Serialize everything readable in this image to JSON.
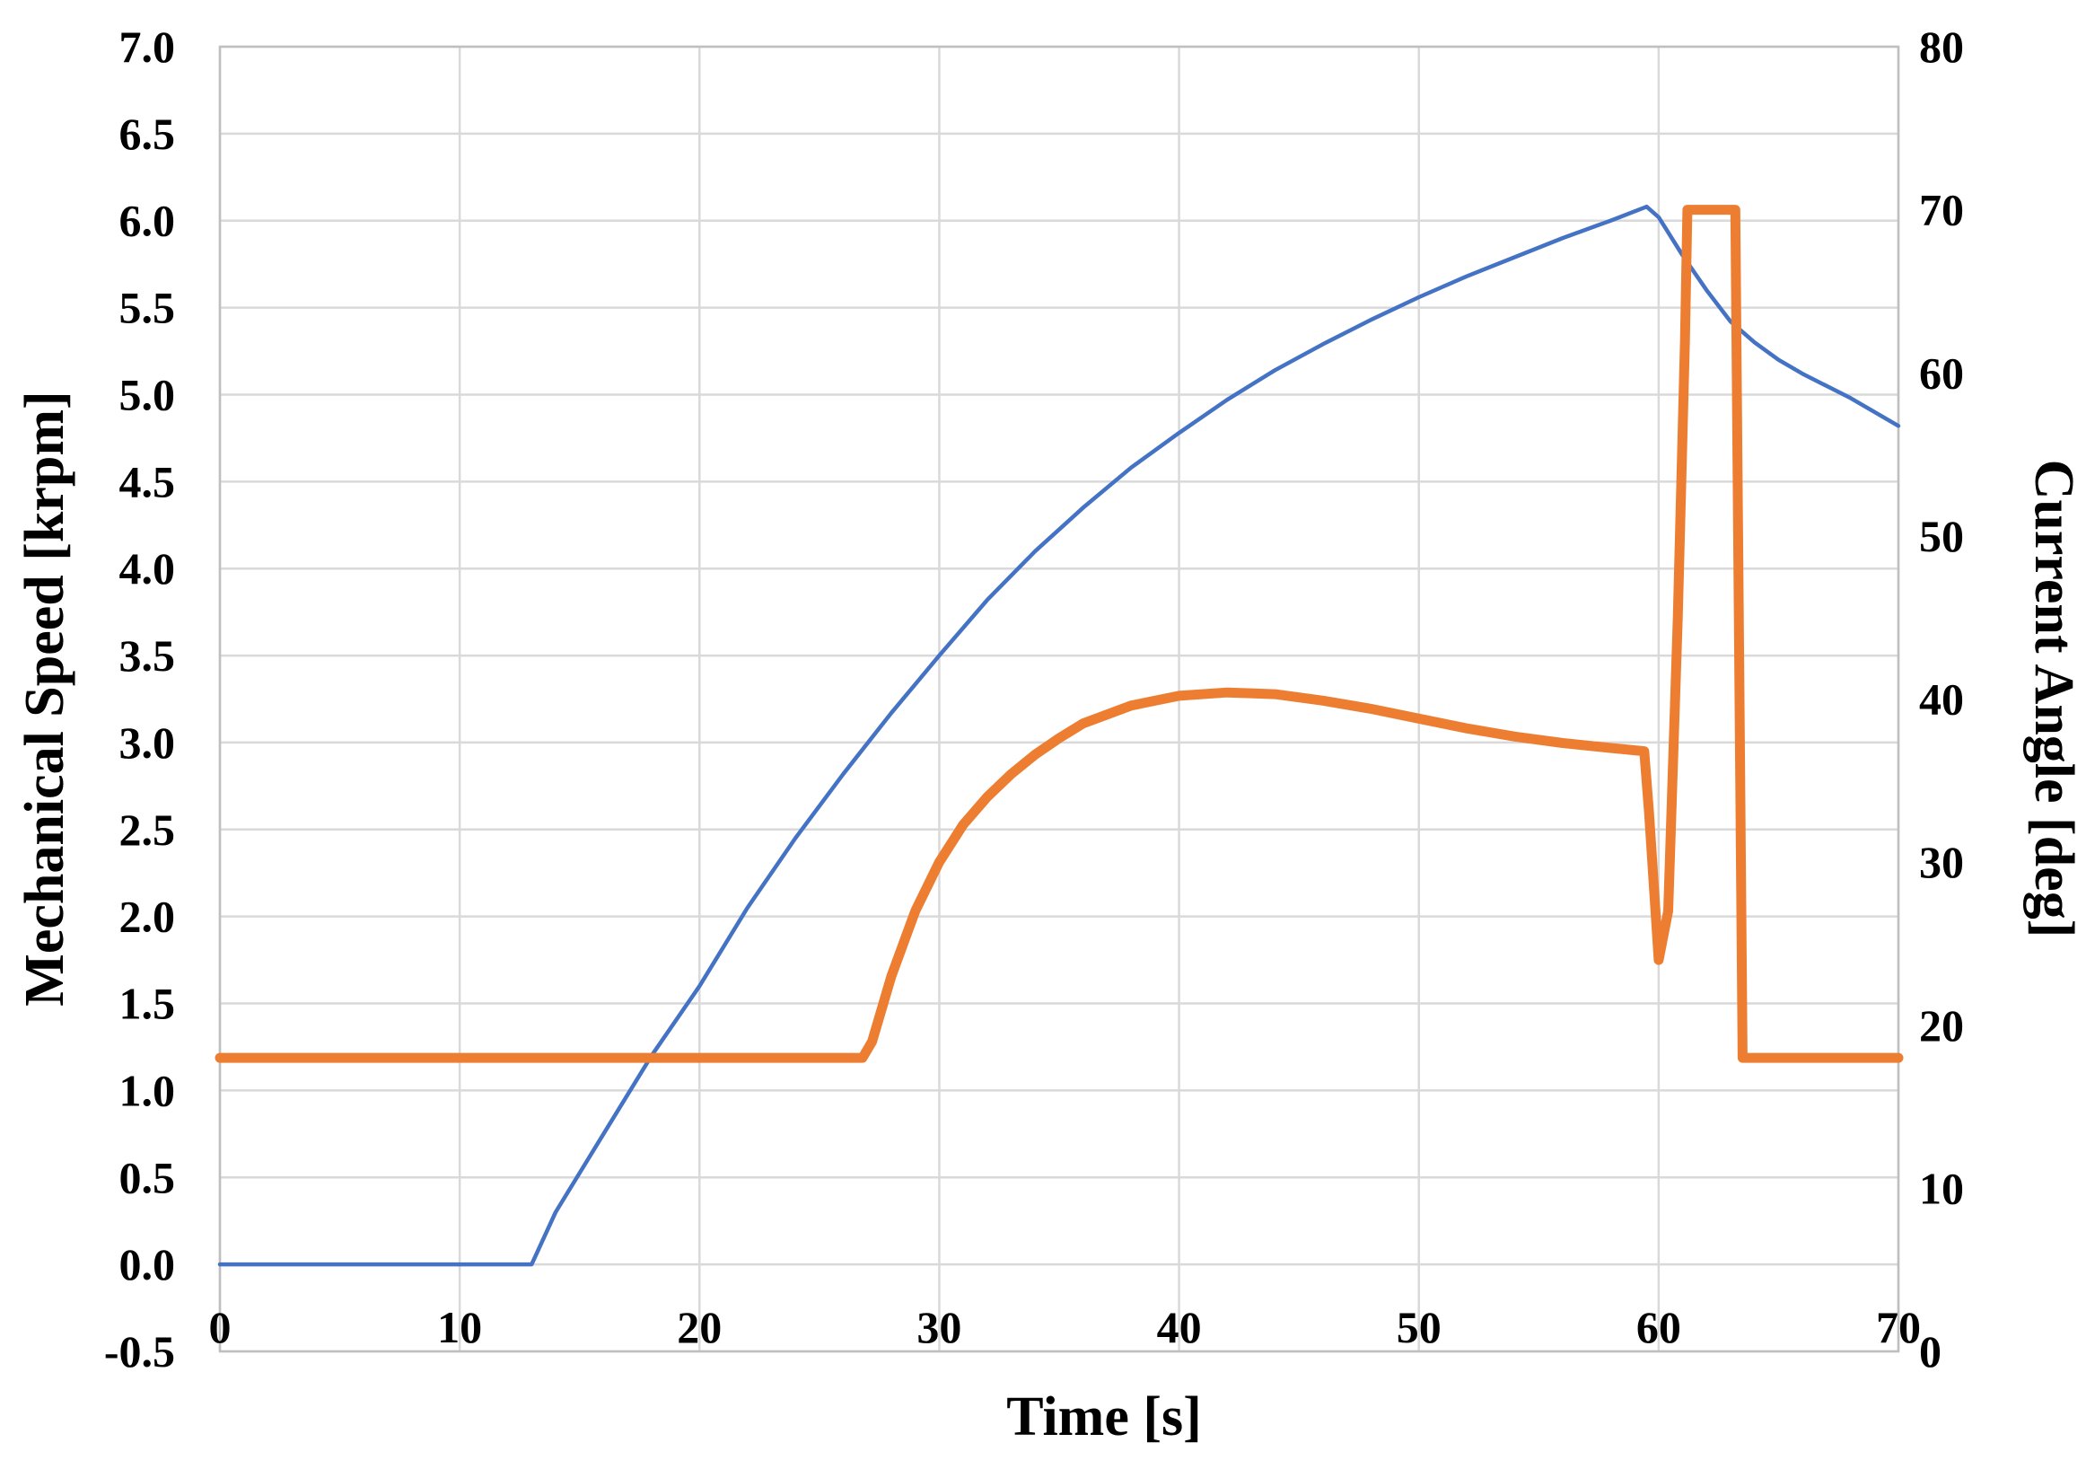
{
  "chart_data": {
    "type": "line",
    "title": "",
    "xlabel": "Time [s]",
    "ylabel_left": "Mechanical Speed [krpm]",
    "ylabel_right": "Current Angle [deg]",
    "xlim": [
      0,
      70
    ],
    "ylim_left": [
      -0.5,
      7.0
    ],
    "ylim_right": [
      0,
      80
    ],
    "x_ticks": [
      "0",
      "10",
      "20",
      "30",
      "40",
      "50",
      "60",
      "70"
    ],
    "y_left_ticks": [
      "-0.5",
      "0.0",
      "0.5",
      "1.0",
      "1.5",
      "2.0",
      "2.5",
      "3.0",
      "3.5",
      "4.0",
      "4.5",
      "5.0",
      "5.5",
      "6.0",
      "6.5",
      "7.0"
    ],
    "y_right_ticks": [
      "0",
      "10",
      "20",
      "30",
      "40",
      "50",
      "60",
      "70",
      "80"
    ],
    "grid": true,
    "legend": "none",
    "series": [
      {
        "axis": "left",
        "color": "#4472c4",
        "x": [
          0,
          13,
          14,
          16,
          18,
          20,
          22,
          24,
          26,
          28,
          30,
          32,
          34,
          36,
          38,
          40,
          42,
          44,
          46,
          48,
          50,
          52,
          54,
          56,
          58,
          59.5,
          60,
          61,
          62,
          63,
          64,
          65,
          66,
          67,
          68,
          69,
          70
        ],
        "y": [
          0.0,
          0.0,
          0.3,
          0.75,
          1.2,
          1.6,
          2.05,
          2.45,
          2.82,
          3.17,
          3.5,
          3.82,
          4.1,
          4.35,
          4.58,
          4.78,
          4.97,
          5.14,
          5.29,
          5.43,
          5.56,
          5.68,
          5.79,
          5.9,
          6.0,
          6.08,
          6.02,
          5.8,
          5.6,
          5.42,
          5.3,
          5.2,
          5.12,
          5.05,
          4.98,
          4.9,
          4.82
        ]
      },
      {
        "axis": "right",
        "color": "#ed7d31",
        "x": [
          0,
          26.8,
          27.2,
          28,
          29,
          30,
          31,
          32,
          33,
          34,
          35,
          36,
          38,
          40,
          42,
          44,
          46,
          48,
          50,
          52,
          54,
          56,
          58,
          59.4,
          59.6,
          60,
          60.4,
          60.8,
          61.1,
          61.2,
          63.2,
          63.5,
          70
        ],
        "y": [
          18,
          18,
          19,
          23,
          27,
          30,
          32.3,
          34,
          35.4,
          36.6,
          37.6,
          38.5,
          39.6,
          40.2,
          40.4,
          40.3,
          39.9,
          39.4,
          38.8,
          38.2,
          37.7,
          37.3,
          37.0,
          36.8,
          33,
          24,
          27,
          45,
          62,
          70,
          70,
          18,
          18
        ]
      }
    ]
  }
}
